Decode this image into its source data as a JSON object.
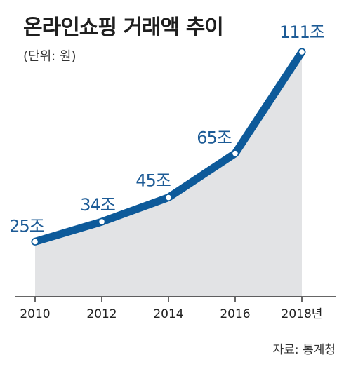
{
  "chart_data": {
    "type": "area",
    "title": "온라인쇼핑 거래액 추이",
    "subtitle": "(단위: 원)",
    "x": [
      "2010",
      "2012",
      "2014",
      "2016",
      "2018"
    ],
    "x_tick_labels": [
      "2010",
      "2012",
      "2014",
      "2016",
      "2018년"
    ],
    "series": [
      {
        "values": [
          25,
          34,
          45,
          65,
          111
        ],
        "data_labels": [
          "25조",
          "34조",
          "45조",
          "65조",
          "111조"
        ]
      }
    ],
    "ylim": [
      0,
      111
    ],
    "grid": false,
    "legend": "none",
    "source": "자료: 통계청",
    "colors": {
      "line": "#0d5a9a",
      "area": "#e2e3e5",
      "axis": "#333333",
      "label": "#1d5b96",
      "marker_fill": "#ffffff"
    }
  }
}
